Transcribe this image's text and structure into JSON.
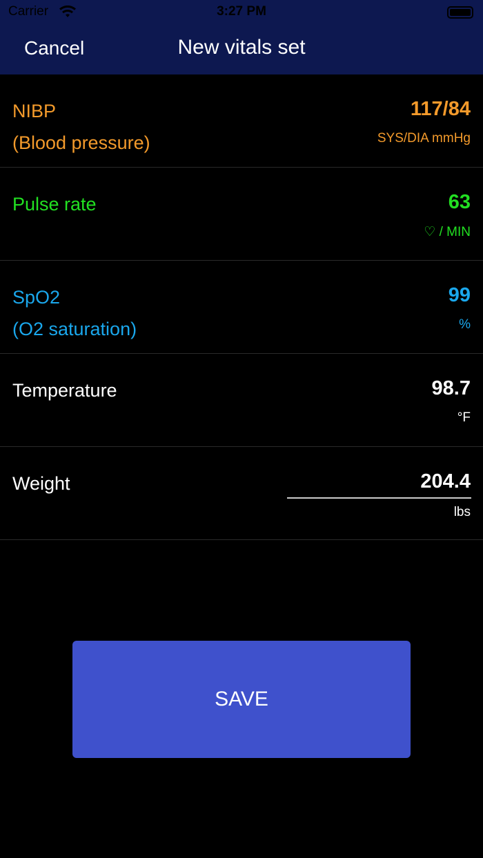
{
  "status_bar": {
    "carrier": "Carrier",
    "time": "3:27 PM"
  },
  "nav": {
    "cancel_label": "Cancel",
    "title": "New vitals set"
  },
  "colors": {
    "nav_bg": "#0d1850",
    "nibp": "#f39a2b",
    "pulse": "#22e022",
    "spo2": "#1aa7ec",
    "default": "#ffffff",
    "save_bg": "#3f51cc"
  },
  "vitals": [
    {
      "label1": "NIBP",
      "label2": "(Blood pressure)",
      "value": "117/84",
      "unit": "SYS/DIA mmHg"
    },
    {
      "label1": "Pulse rate",
      "label2": "",
      "value": "63",
      "unit": "♡ / MIN"
    },
    {
      "label1": "SpO2",
      "label2": "(O2 saturation)",
      "value": "99",
      "unit": "%"
    },
    {
      "label1": "Temperature",
      "label2": "",
      "value": "98.7",
      "unit": "°F"
    },
    {
      "label1": "Weight",
      "label2": "",
      "value": "204.4",
      "unit": "lbs"
    }
  ],
  "save_label": "SAVE"
}
